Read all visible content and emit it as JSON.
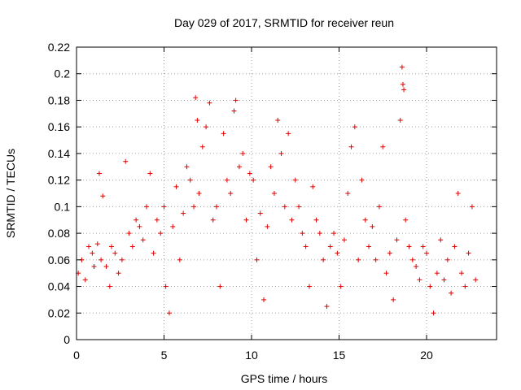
{
  "chart_data": {
    "type": "scatter",
    "title": "Day 029 of 2017, SRMTID for receiver reun",
    "xlabel": "GPS time / hours",
    "ylabel": "SRMTID / TECUs",
    "xlim": [
      0,
      24
    ],
    "ylim": [
      0,
      0.22
    ],
    "x_ticks": [
      0,
      5,
      10,
      15,
      20
    ],
    "x_tick_labels": [
      "0",
      "5",
      "10",
      "15",
      "20"
    ],
    "y_ticks": [
      0,
      0.02,
      0.04,
      0.06,
      0.08,
      0.1,
      0.12,
      0.14,
      0.16,
      0.18,
      0.2,
      0.22
    ],
    "y_tick_labels": [
      "0",
      "0.02",
      "0.04",
      "0.06",
      "0.08",
      "0.1",
      "0.12",
      "0.14",
      "0.16",
      "0.18",
      "0.2",
      "0.22"
    ],
    "grid": true,
    "marker": "plus",
    "color": "#e00000",
    "series": [
      {
        "name": "SRMTID",
        "points": [
          [
            0.1,
            0.05
          ],
          [
            0.3,
            0.06
          ],
          [
            0.5,
            0.045
          ],
          [
            0.7,
            0.07
          ],
          [
            0.9,
            0.065
          ],
          [
            1.0,
            0.055
          ],
          [
            1.2,
            0.072
          ],
          [
            1.3,
            0.125
          ],
          [
            1.4,
            0.06
          ],
          [
            1.5,
            0.108
          ],
          [
            1.7,
            0.055
          ],
          [
            1.9,
            0.04
          ],
          [
            2.0,
            0.07
          ],
          [
            2.2,
            0.065
          ],
          [
            2.4,
            0.05
          ],
          [
            2.6,
            0.06
          ],
          [
            2.8,
            0.134
          ],
          [
            3.0,
            0.08
          ],
          [
            3.2,
            0.07
          ],
          [
            3.4,
            0.09
          ],
          [
            3.6,
            0.085
          ],
          [
            3.8,
            0.075
          ],
          [
            4.0,
            0.1
          ],
          [
            4.2,
            0.125
          ],
          [
            4.4,
            0.065
          ],
          [
            4.6,
            0.09
          ],
          [
            4.8,
            0.08
          ],
          [
            5.0,
            0.1
          ],
          [
            5.1,
            0.04
          ],
          [
            5.3,
            0.02
          ],
          [
            5.5,
            0.085
          ],
          [
            5.7,
            0.115
          ],
          [
            5.9,
            0.06
          ],
          [
            6.1,
            0.095
          ],
          [
            6.3,
            0.13
          ],
          [
            6.5,
            0.12
          ],
          [
            6.7,
            0.1
          ],
          [
            6.8,
            0.182
          ],
          [
            6.9,
            0.165
          ],
          [
            7.0,
            0.11
          ],
          [
            7.2,
            0.145
          ],
          [
            7.4,
            0.16
          ],
          [
            7.6,
            0.178
          ],
          [
            7.8,
            0.09
          ],
          [
            8.0,
            0.1
          ],
          [
            8.2,
            0.04
          ],
          [
            8.4,
            0.155
          ],
          [
            8.6,
            0.12
          ],
          [
            8.8,
            0.11
          ],
          [
            9.0,
            0.172
          ],
          [
            9.1,
            0.18
          ],
          [
            9.3,
            0.13
          ],
          [
            9.5,
            0.14
          ],
          [
            9.7,
            0.09
          ],
          [
            9.9,
            0.125
          ],
          [
            10.1,
            0.12
          ],
          [
            10.3,
            0.06
          ],
          [
            10.5,
            0.095
          ],
          [
            10.7,
            0.03
          ],
          [
            10.9,
            0.085
          ],
          [
            11.1,
            0.13
          ],
          [
            11.3,
            0.11
          ],
          [
            11.5,
            0.165
          ],
          [
            11.7,
            0.14
          ],
          [
            11.9,
            0.1
          ],
          [
            12.1,
            0.155
          ],
          [
            12.3,
            0.09
          ],
          [
            12.5,
            0.12
          ],
          [
            12.7,
            0.1
          ],
          [
            12.9,
            0.08
          ],
          [
            13.1,
            0.07
          ],
          [
            13.3,
            0.04
          ],
          [
            13.5,
            0.115
          ],
          [
            13.7,
            0.09
          ],
          [
            13.9,
            0.08
          ],
          [
            14.1,
            0.06
          ],
          [
            14.3,
            0.025
          ],
          [
            14.5,
            0.07
          ],
          [
            14.7,
            0.08
          ],
          [
            14.9,
            0.065
          ],
          [
            15.1,
            0.04
          ],
          [
            15.3,
            0.075
          ],
          [
            15.5,
            0.11
          ],
          [
            15.7,
            0.145
          ],
          [
            15.9,
            0.16
          ],
          [
            16.1,
            0.06
          ],
          [
            16.3,
            0.12
          ],
          [
            16.5,
            0.09
          ],
          [
            16.7,
            0.07
          ],
          [
            16.9,
            0.085
          ],
          [
            17.1,
            0.06
          ],
          [
            17.3,
            0.1
          ],
          [
            17.5,
            0.145
          ],
          [
            17.7,
            0.05
          ],
          [
            17.9,
            0.065
          ],
          [
            18.1,
            0.03
          ],
          [
            18.3,
            0.075
          ],
          [
            18.5,
            0.165
          ],
          [
            18.6,
            0.205
          ],
          [
            18.65,
            0.192
          ],
          [
            18.7,
            0.188
          ],
          [
            18.8,
            0.09
          ],
          [
            19.0,
            0.07
          ],
          [
            19.2,
            0.06
          ],
          [
            19.4,
            0.055
          ],
          [
            19.6,
            0.045
          ],
          [
            19.8,
            0.07
          ],
          [
            20.0,
            0.065
          ],
          [
            20.2,
            0.04
          ],
          [
            20.4,
            0.02
          ],
          [
            20.6,
            0.05
          ],
          [
            20.8,
            0.075
          ],
          [
            21.0,
            0.045
          ],
          [
            21.2,
            0.06
          ],
          [
            21.4,
            0.035
          ],
          [
            21.6,
            0.07
          ],
          [
            21.8,
            0.11
          ],
          [
            22.0,
            0.05
          ],
          [
            22.2,
            0.04
          ],
          [
            22.4,
            0.065
          ],
          [
            22.6,
            0.1
          ],
          [
            22.8,
            0.045
          ]
        ]
      }
    ]
  }
}
